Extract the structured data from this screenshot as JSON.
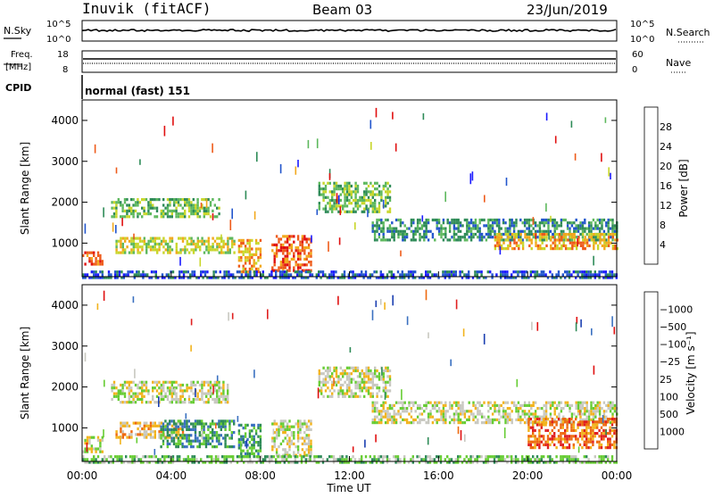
{
  "header": {
    "station": "Inuvik (fitACF)",
    "beam": "Beam 03",
    "date": "23/Jun/2019"
  },
  "status_panels": {
    "nsky_label": "N.Sky",
    "nsky_ticks": [
      "10^5",
      "10^0"
    ],
    "nsearch_label": "N.Search",
    "nsearch_ticks": [
      "10^5",
      "10^0"
    ],
    "freq_label_1": "Freq.",
    "freq_label_2": "[MHz]",
    "freq_ticks": [
      "18",
      "8"
    ],
    "nave_label": "Nave",
    "nave_ticks": [
      "60",
      "0"
    ],
    "cpid_label": "CPID",
    "cpid_text": "normal (fast) 151"
  },
  "chart_data": [
    {
      "type": "heatmap",
      "name": "power-panel",
      "ylabel": "Slant Range [km]",
      "ylim": [
        180,
        4500
      ],
      "yticks": [
        1000,
        2000,
        3000,
        4000
      ],
      "xlim": [
        0,
        24
      ],
      "colorbar_label": "Power [dB]",
      "colorbar_ticks": [
        "4",
        "8",
        "12",
        "16",
        "20",
        "24",
        "28"
      ],
      "colorbar_colors": [
        "#1a1aff",
        "#2255cc",
        "#2e8b57",
        "#5db85d",
        "#c8d62a",
        "#f2a81c",
        "#ee5b1a",
        "#e01010"
      ],
      "features": [
        {
          "t0": 0.0,
          "t1": 0.9,
          "r0": 500,
          "r1": 800,
          "level": 6
        },
        {
          "t0": 1.3,
          "t1": 6.2,
          "r0": 1650,
          "r1": 2100,
          "level": 3
        },
        {
          "t0": 1.5,
          "t1": 6.8,
          "r0": 800,
          "r1": 1150,
          "level": 4
        },
        {
          "t0": 7.0,
          "t1": 8.0,
          "r0": 300,
          "r1": 1100,
          "level": 5
        },
        {
          "t0": 8.5,
          "t1": 10.3,
          "r0": 300,
          "r1": 1200,
          "level": 6
        },
        {
          "t0": 10.6,
          "t1": 13.8,
          "r0": 1800,
          "r1": 2500,
          "level": 3
        },
        {
          "t0": 13.0,
          "t1": 24.0,
          "r0": 1050,
          "r1": 1600,
          "level": 2
        },
        {
          "t0": 18.5,
          "t1": 24.0,
          "r0": 850,
          "r1": 1250,
          "level": 5
        },
        {
          "t0": 0.0,
          "t1": 24.0,
          "r0": 180,
          "r1": 330,
          "level": 1
        }
      ]
    },
    {
      "type": "heatmap",
      "name": "velocity-panel",
      "ylabel": "Slant Range [km]",
      "ylim": [
        180,
        4500
      ],
      "yticks": [
        1000,
        2000,
        3000,
        4000
      ],
      "xlim": [
        0,
        24
      ],
      "xlabel": "Time UT",
      "xticks": [
        "00:00",
        "04:00",
        "08:00",
        "12:00",
        "16:00",
        "20:00",
        "00:00"
      ],
      "colorbar_label": "Velocity [m s⁻¹]",
      "colorbar_ticks": [
        "1000",
        "500",
        "100",
        "25",
        "−25",
        "−100",
        "−500",
        "−1000"
      ],
      "colorbar_colors": [
        "#1b3fb0",
        "#3a70c0",
        "#2e8b57",
        "#66cc33",
        "#c8c8c0",
        "#f2b31c",
        "#ee6a10",
        "#e02020",
        "#e01010"
      ],
      "features": [
        {
          "t0": 0.0,
          "t1": 0.9,
          "r0": 450,
          "r1": 800,
          "level": 4
        },
        {
          "t0": 1.3,
          "t1": 6.5,
          "r0": 1600,
          "r1": 2150,
          "level": 4
        },
        {
          "t0": 1.5,
          "t1": 4.5,
          "r0": 800,
          "r1": 1150,
          "level": 5
        },
        {
          "t0": 3.5,
          "t1": 6.8,
          "r0": 550,
          "r1": 1200,
          "level": 2
        },
        {
          "t0": 7.0,
          "t1": 8.0,
          "r0": 300,
          "r1": 1100,
          "level": 2
        },
        {
          "t0": 8.5,
          "t1": 10.3,
          "r0": 300,
          "r1": 1200,
          "level": 4
        },
        {
          "t0": 10.6,
          "t1": 13.8,
          "r0": 1800,
          "r1": 2500,
          "level": 4
        },
        {
          "t0": 13.0,
          "t1": 24.0,
          "r0": 1100,
          "r1": 1650,
          "level": 4
        },
        {
          "t0": 20.0,
          "t1": 24.0,
          "r0": 500,
          "r1": 1250,
          "level": 6
        },
        {
          "t0": 0.0,
          "t1": 24.0,
          "r0": 180,
          "r1": 330,
          "level": 3
        }
      ]
    }
  ]
}
